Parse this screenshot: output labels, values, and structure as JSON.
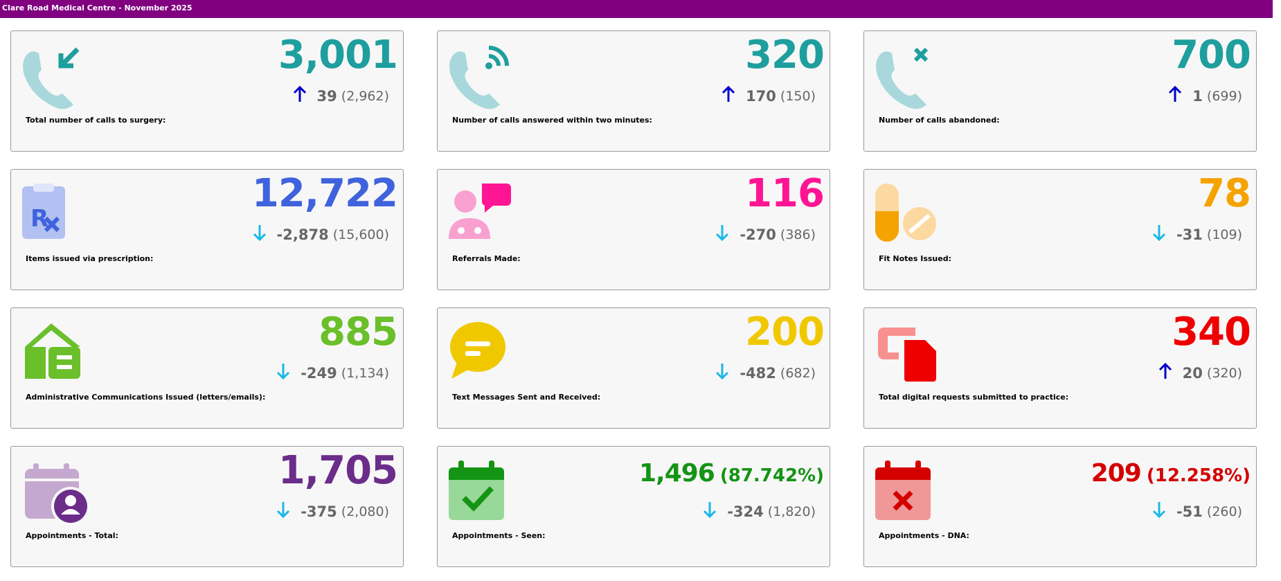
{
  "header": {
    "title": "Clare Road Medical Centre - November 2025"
  },
  "cards": [
    {
      "value": "3,001",
      "change": "39",
      "previous": "(2,962)",
      "label": "Total number of calls to surgery:",
      "color": "#1f9e9e",
      "trend": "up"
    },
    {
      "value": "320",
      "change": "170",
      "previous": "(150)",
      "label": "Number of calls answered within two minutes:",
      "color": "#1f9e9e",
      "trend": "up"
    },
    {
      "value": "700",
      "change": "1",
      "previous": "(699)",
      "label": "Number of calls abandoned:",
      "color": "#1f9e9e",
      "trend": "up"
    },
    {
      "value": "12,722",
      "change": "-2,878",
      "previous": "(15,600)",
      "label": "Items issued via prescription:",
      "color": "#3f63dd",
      "trend": "down"
    },
    {
      "value": "116",
      "change": "-270",
      "previous": "(386)",
      "label": "Referrals Made:",
      "color": "#ff1493",
      "trend": "down"
    },
    {
      "value": "78",
      "change": "-31",
      "previous": "(109)",
      "label": "Fit Notes Issued:",
      "color": "#f5a300",
      "trend": "down"
    },
    {
      "value": "885",
      "change": "-249",
      "previous": "(1,134)",
      "label": "Administrative Communications Issued (letters/emails):",
      "color": "#6abf2a",
      "trend": "down"
    },
    {
      "value": "200",
      "change": "-482",
      "previous": "(682)",
      "label": "Text Messages Sent and Received:",
      "color": "#f0c800",
      "trend": "down"
    },
    {
      "value": "340",
      "change": "20",
      "previous": "(320)",
      "label": "Total digital requests submitted to practice:",
      "color": "#ee0000",
      "trend": "up"
    },
    {
      "value": "1,705",
      "change": "-375",
      "previous": "(2,080)",
      "label": "Appointments - Total:",
      "color": "#6b2d8a",
      "trend": "down"
    },
    {
      "value": "1,496",
      "percent": "(87.742%)",
      "change": "-324",
      "previous": "(1,820)",
      "label": "Appointments - Seen:",
      "color": "#149414",
      "trend": "down"
    },
    {
      "value": "209",
      "percent": "(12.258%)",
      "change": "-51",
      "previous": "(260)",
      "label": "Appointments - DNA:",
      "color": "#d40000",
      "trend": "down"
    }
  ]
}
